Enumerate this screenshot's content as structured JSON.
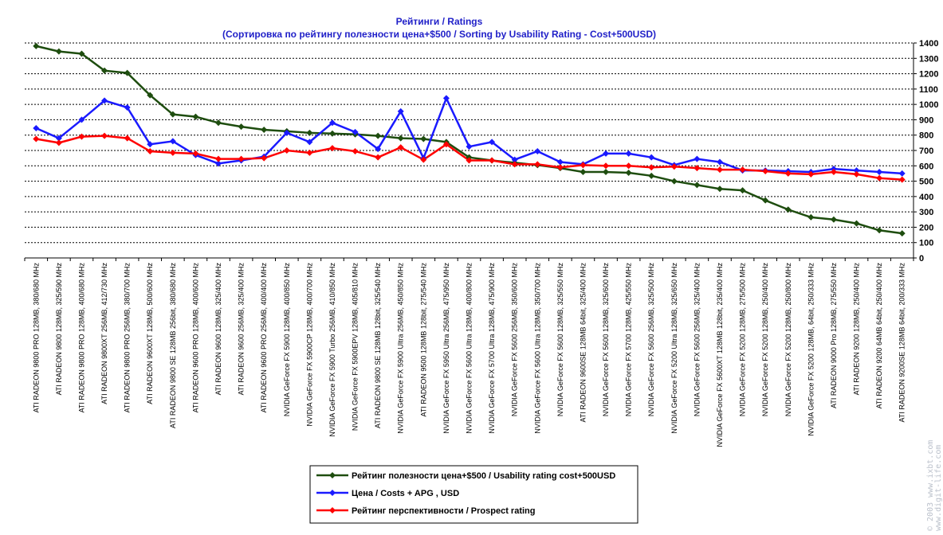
{
  "chart_data": {
    "type": "line",
    "title": "Рейтинги / Ratings",
    "subtitle": "(Сортировка по рейтингу полезности цена+$500 / Sorting by Usability Rating - Cost+500USD)",
    "xlabel": "",
    "ylabel": "",
    "ylim": [
      0,
      1400
    ],
    "yticks": [
      0,
      100,
      200,
      300,
      400,
      500,
      600,
      700,
      800,
      900,
      1000,
      1100,
      1200,
      1300,
      1400
    ],
    "grid": true,
    "legend_position": "bottom-center",
    "categories": [
      "ATI RADEON 9800 PRO 128MB, 380/680 MHz",
      "ATI RADEON 9800 128MB, 325/590 MHz",
      "ATI RADEON 9800 PRO 128MB, 400/680 MHz",
      "ATI RADEON 9800XT 256MB, 412/730 MHz",
      "ATI RADEON 9800 PRO 256MB, 380/700 MHz",
      "ATI RADEON 9600XT 128MB, 500/600 MHz",
      "ATI RADEON 9800 SE 128MB 256bit, 380/680 MHz",
      "ATI RADEON 9600 PRO 128MB, 400/600 MHz",
      "ATI RADEON 9600 128MB, 325/400 MHz",
      "ATI RADEON 9600 256MB, 325/400 MHz",
      "ATI RADEON 9600 PRO 256MB, 400/400 MHz",
      "NVIDIA GeForce FX 5900 128MB, 400/850 MHz",
      "NVIDIA GeForce FX 5900CP 128MB, 400/700 MHz",
      "NVIDIA GeForce FX 5900 Turbo 256MB, 410/850 MHz",
      "NVIDIA GeForce FX 5900EPV 128MB, 405/810 MHz",
      "ATI RADEON 9800 SE 128MB 128bit, 325/540 MHz",
      "NVIDIA GeForce FX 5900 Ultra 256MB, 450/850 MHz",
      "ATI RADEON 9500 128MB 128bit, 275/540 MHz",
      "NVIDIA GeForce FX 5950 Ultra 256MB, 475/950 MHz",
      "NVIDIA GeForce FX 5600 Ultra 128MB, 400/800 MHz",
      "NVIDIA GeForce FX 5700 Ultra 128MB, 475/900 MHz",
      "NVIDIA GeForce FX 5600 256MB, 350/600 MHz",
      "NVIDIA GeForce FX 5600 Ultra 128MB, 350/700 MHz",
      "NVIDIA GeForce FX 5600 128MB, 325/550 MHz",
      "ATI RADEON 9600SE 128MB 64bit, 325/400 MHz",
      "NVIDIA GeForce FX 5600 128MB, 325/600 MHz",
      "NVIDIA GeForce FX 5700 128MB, 425/550 MHz",
      "NVIDIA GeForce FX 5600 256MB, 325/500 MHz",
      "NVIDIA GeForce FX 5200 Ultra 128MB, 325/650 MHz",
      "NVIDIA GeForce FX 5600 256MB, 325/400 MHz",
      "NVIDIA GeForce FX 5600XT 128MB 128bit, 235/400 MHz",
      "NVIDIA GeForce FX 5200 128MB, 275/500 MHz",
      "NVIDIA GeForce FX 5200 128MB, 250/400 MHz",
      "NVIDIA GeForce FX 5200 128MB, 250/800 MHz",
      "NVIDIA GeForce FX 5200 128MB, 64bit, 250/333 MHz",
      "ATI RADEON 9000 Pro 128MB, 275/550 MHz",
      "ATI RADEON 9200 128MB, 250/400 MHz",
      "ATI RADEON 9200 64MB 64bit, 250/400 MHz",
      "ATI RADEON 9200SE 128MB 64bit, 200/333 MHz"
    ],
    "series": [
      {
        "name": "Рейтинг полезности цена+$500 / Usability rating cost+500USD",
        "color": "#1e4d0f",
        "values": [
          1380,
          1345,
          1330,
          1220,
          1205,
          1060,
          935,
          920,
          880,
          855,
          835,
          825,
          815,
          810,
          805,
          795,
          780,
          775,
          755,
          655,
          635,
          620,
          605,
          585,
          560,
          560,
          555,
          535,
          500,
          475,
          450,
          440,
          375,
          315,
          265,
          250,
          225,
          180,
          160
        ]
      },
      {
        "name": "Цена / Costs + APG , USD",
        "color": "#1a1aff",
        "values": [
          845,
          780,
          900,
          1025,
          980,
          740,
          760,
          670,
          615,
          635,
          660,
          815,
          755,
          880,
          820,
          710,
          955,
          650,
          1040,
          725,
          755,
          640,
          695,
          625,
          610,
          680,
          680,
          655,
          605,
          645,
          625,
          570,
          570,
          565,
          560,
          580,
          570,
          560,
          550
        ]
      },
      {
        "name": "Рейтинг перспективности / Prospect rating",
        "color": "#ff0000",
        "values": [
          775,
          750,
          790,
          795,
          780,
          695,
          685,
          680,
          645,
          645,
          650,
          700,
          685,
          715,
          695,
          655,
          720,
          640,
          740,
          635,
          635,
          610,
          610,
          590,
          605,
          600,
          600,
          590,
          595,
          585,
          575,
          575,
          565,
          550,
          545,
          560,
          545,
          520,
          510
        ]
      }
    ]
  },
  "watermark": {
    "line1": "© 2003 www.ixbt.com",
    "line2": "www.digit-life.com"
  }
}
